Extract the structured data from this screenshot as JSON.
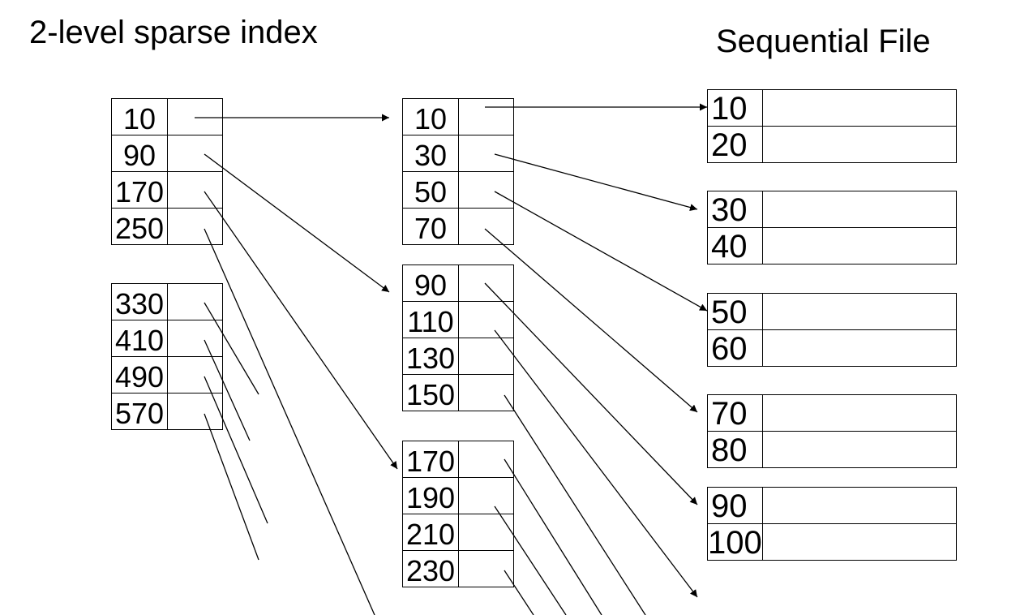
{
  "titles": {
    "left": "2-level sparse index",
    "right": "Sequential File"
  },
  "outer_index": [
    [
      "10",
      "90",
      "170",
      "250"
    ],
    [
      "330",
      "410",
      "490",
      "570"
    ]
  ],
  "inner_index": [
    [
      "10",
      "30",
      "50",
      "70"
    ],
    [
      "90",
      "110",
      "130",
      "150"
    ],
    [
      "170",
      "190",
      "210",
      "230"
    ]
  ],
  "sequential_file": [
    [
      "10",
      "20"
    ],
    [
      "30",
      "40"
    ],
    [
      "50",
      "60"
    ],
    [
      "70",
      "80"
    ],
    [
      "90",
      "100"
    ]
  ]
}
